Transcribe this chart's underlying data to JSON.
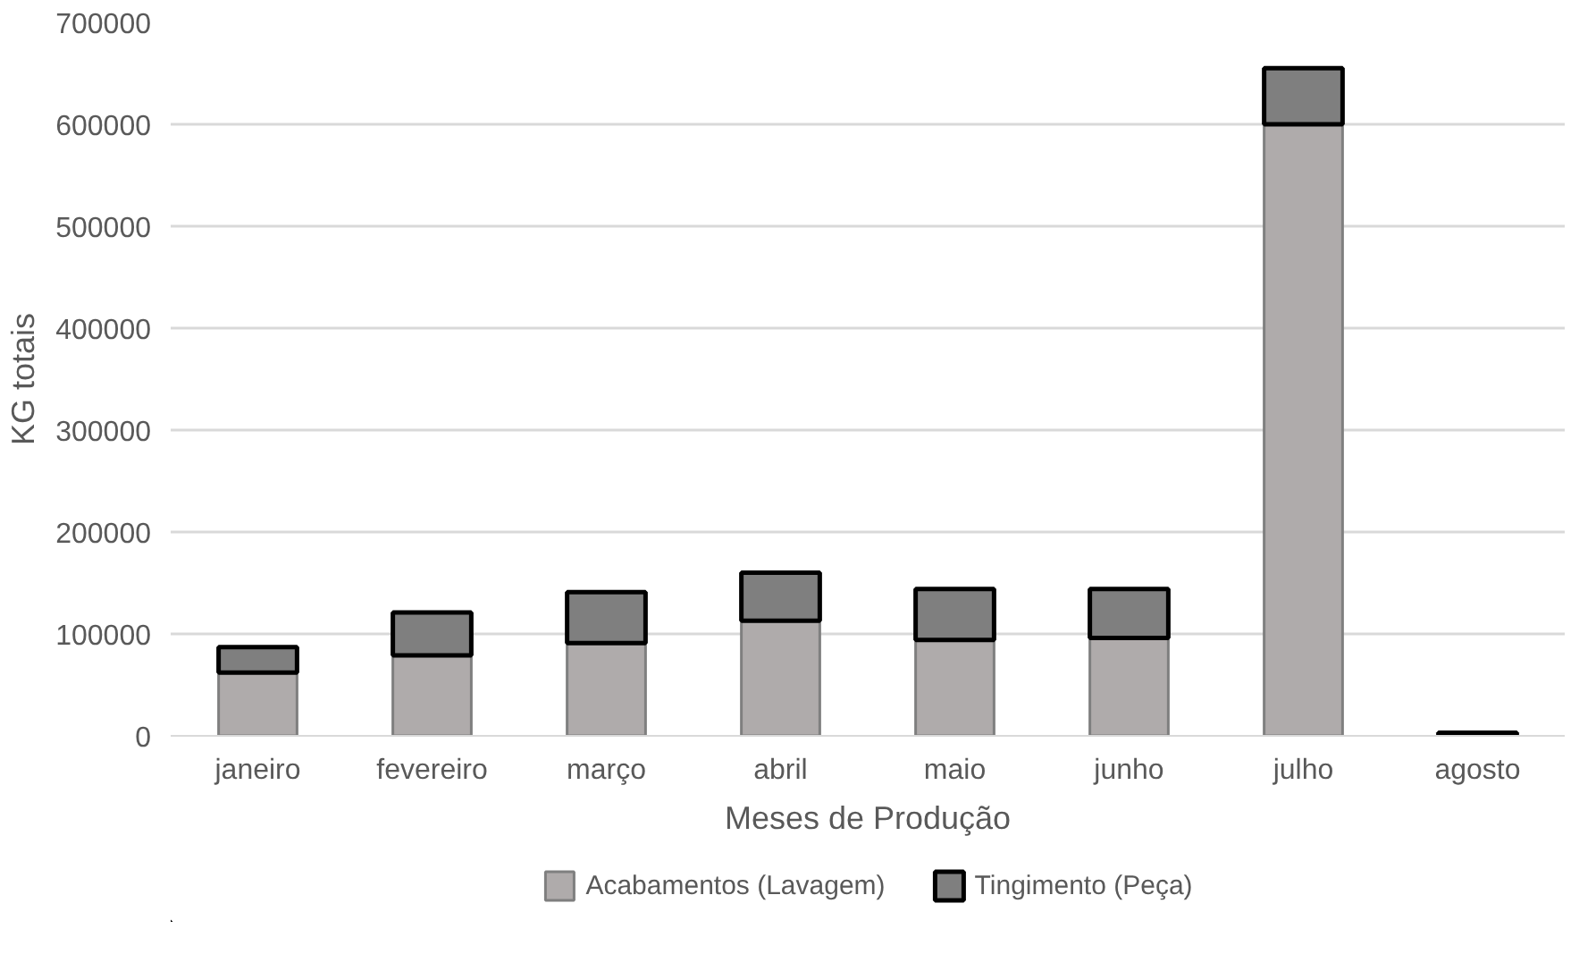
{
  "chart_data": {
    "type": "bar",
    "stacked": true,
    "xlabel": "Meses de Produção",
    "ylabel": "KG totais",
    "categories": [
      "janeiro",
      "fevereiro",
      "março",
      "abril",
      "maio",
      "junho",
      "julho",
      "agosto"
    ],
    "series": [
      {
        "name": "Acabamentos (Lavagem)",
        "color": "#afabab",
        "values": [
          62000,
          79000,
          91000,
          113000,
          94000,
          96000,
          600000,
          null
        ]
      },
      {
        "name": "Tingimento (Peça)",
        "color": "#7f7f7f",
        "values": [
          25000,
          42000,
          50000,
          47000,
          50000,
          48000,
          55000,
          3000
        ]
      }
    ],
    "ylim": [
      0,
      700000
    ],
    "yticks": [
      0,
      100000,
      200000,
      300000,
      400000,
      500000,
      600000,
      700000
    ],
    "grid": "y",
    "legend": "bottom"
  }
}
